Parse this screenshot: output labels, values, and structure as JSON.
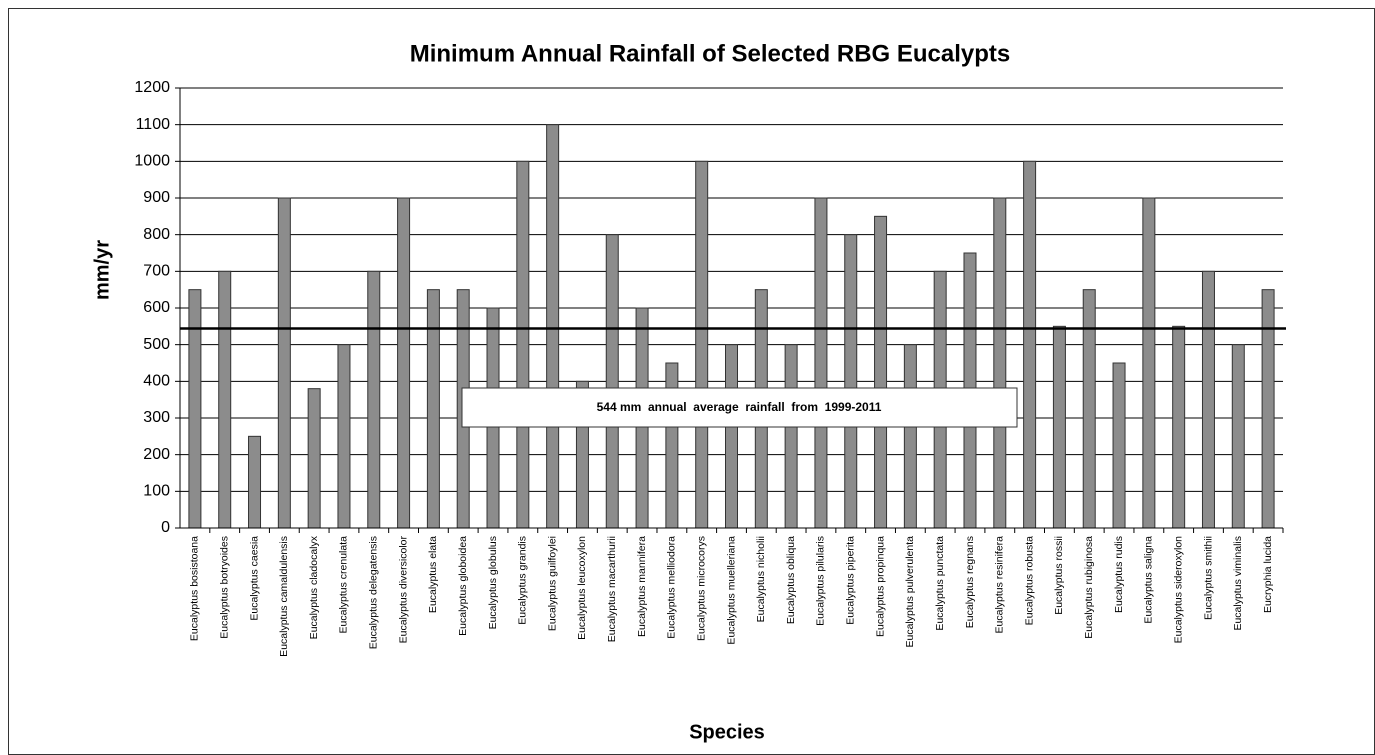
{
  "chart_data": {
    "type": "bar",
    "title": "Minimum Annual Rainfall of Selected RBG Eucalypts",
    "y_label": "mm/yr",
    "x_label": "Species",
    "categories": [
      "Eucalyptus bosistoana",
      "Eucalyptus botryoides",
      "Eucalyptus caesia",
      "Eucalyptus camaldulensis",
      "Eucalyptus cladocalyx",
      "Eucalyptus crenulata",
      "Eucalyptus delegatensis",
      "Eucalyptus diversicolor",
      "Eucalyptus elata",
      "Eucalyptus globoidea",
      "Eucalyptus globulus",
      "Eucalyptus grandis",
      "Eucalyptus guilfoylei",
      "Eucalyptus leucoxylon",
      "Eucalyptus macarthurii",
      "Eucalyptus mannifera",
      "Eucalyptus melliodora",
      "Eucalyptus microcorys",
      "Eucalyptus muelleriana",
      "Eucalyptus nicholii",
      "Eucalyptus obliqua",
      "Eucalyptus pilularis",
      "Eucalyptus piperita",
      "Eucalyptus propinqua",
      "Eucalyptus pulverulenta",
      "Eucalyptus punctata",
      "Eucalyptus regnans",
      "Eucalyptus resinifera",
      "Eucalyptus robusta",
      "Eucalyptus rossii",
      "Eucalyptus rubiginosa",
      "Eucalyptus rudis",
      "Eucalyptus saligna",
      "Eucalyptus sideroxylon",
      "Eucalyptus smithii",
      "Eucalyptus viminalis",
      "Eucryphia lucida"
    ],
    "values": [
      650,
      700,
      250,
      900,
      380,
      500,
      700,
      900,
      650,
      650,
      600,
      1000,
      1100,
      400,
      800,
      600,
      450,
      1000,
      500,
      650,
      500,
      900,
      800,
      850,
      500,
      700,
      750,
      900,
      1000,
      550,
      650,
      450,
      900,
      550,
      700,
      500,
      650
    ],
    "color": "#8c8c8c",
    "reference_value": 544,
    "annotation": "544 mm  annual  average  rainfall  from  1999-2011",
    "ylim": [
      0,
      1200
    ],
    "yticks": [
      0,
      100,
      200,
      300,
      400,
      500,
      600,
      700,
      800,
      900,
      1000,
      1100,
      1200
    ],
    "grid": true
  }
}
